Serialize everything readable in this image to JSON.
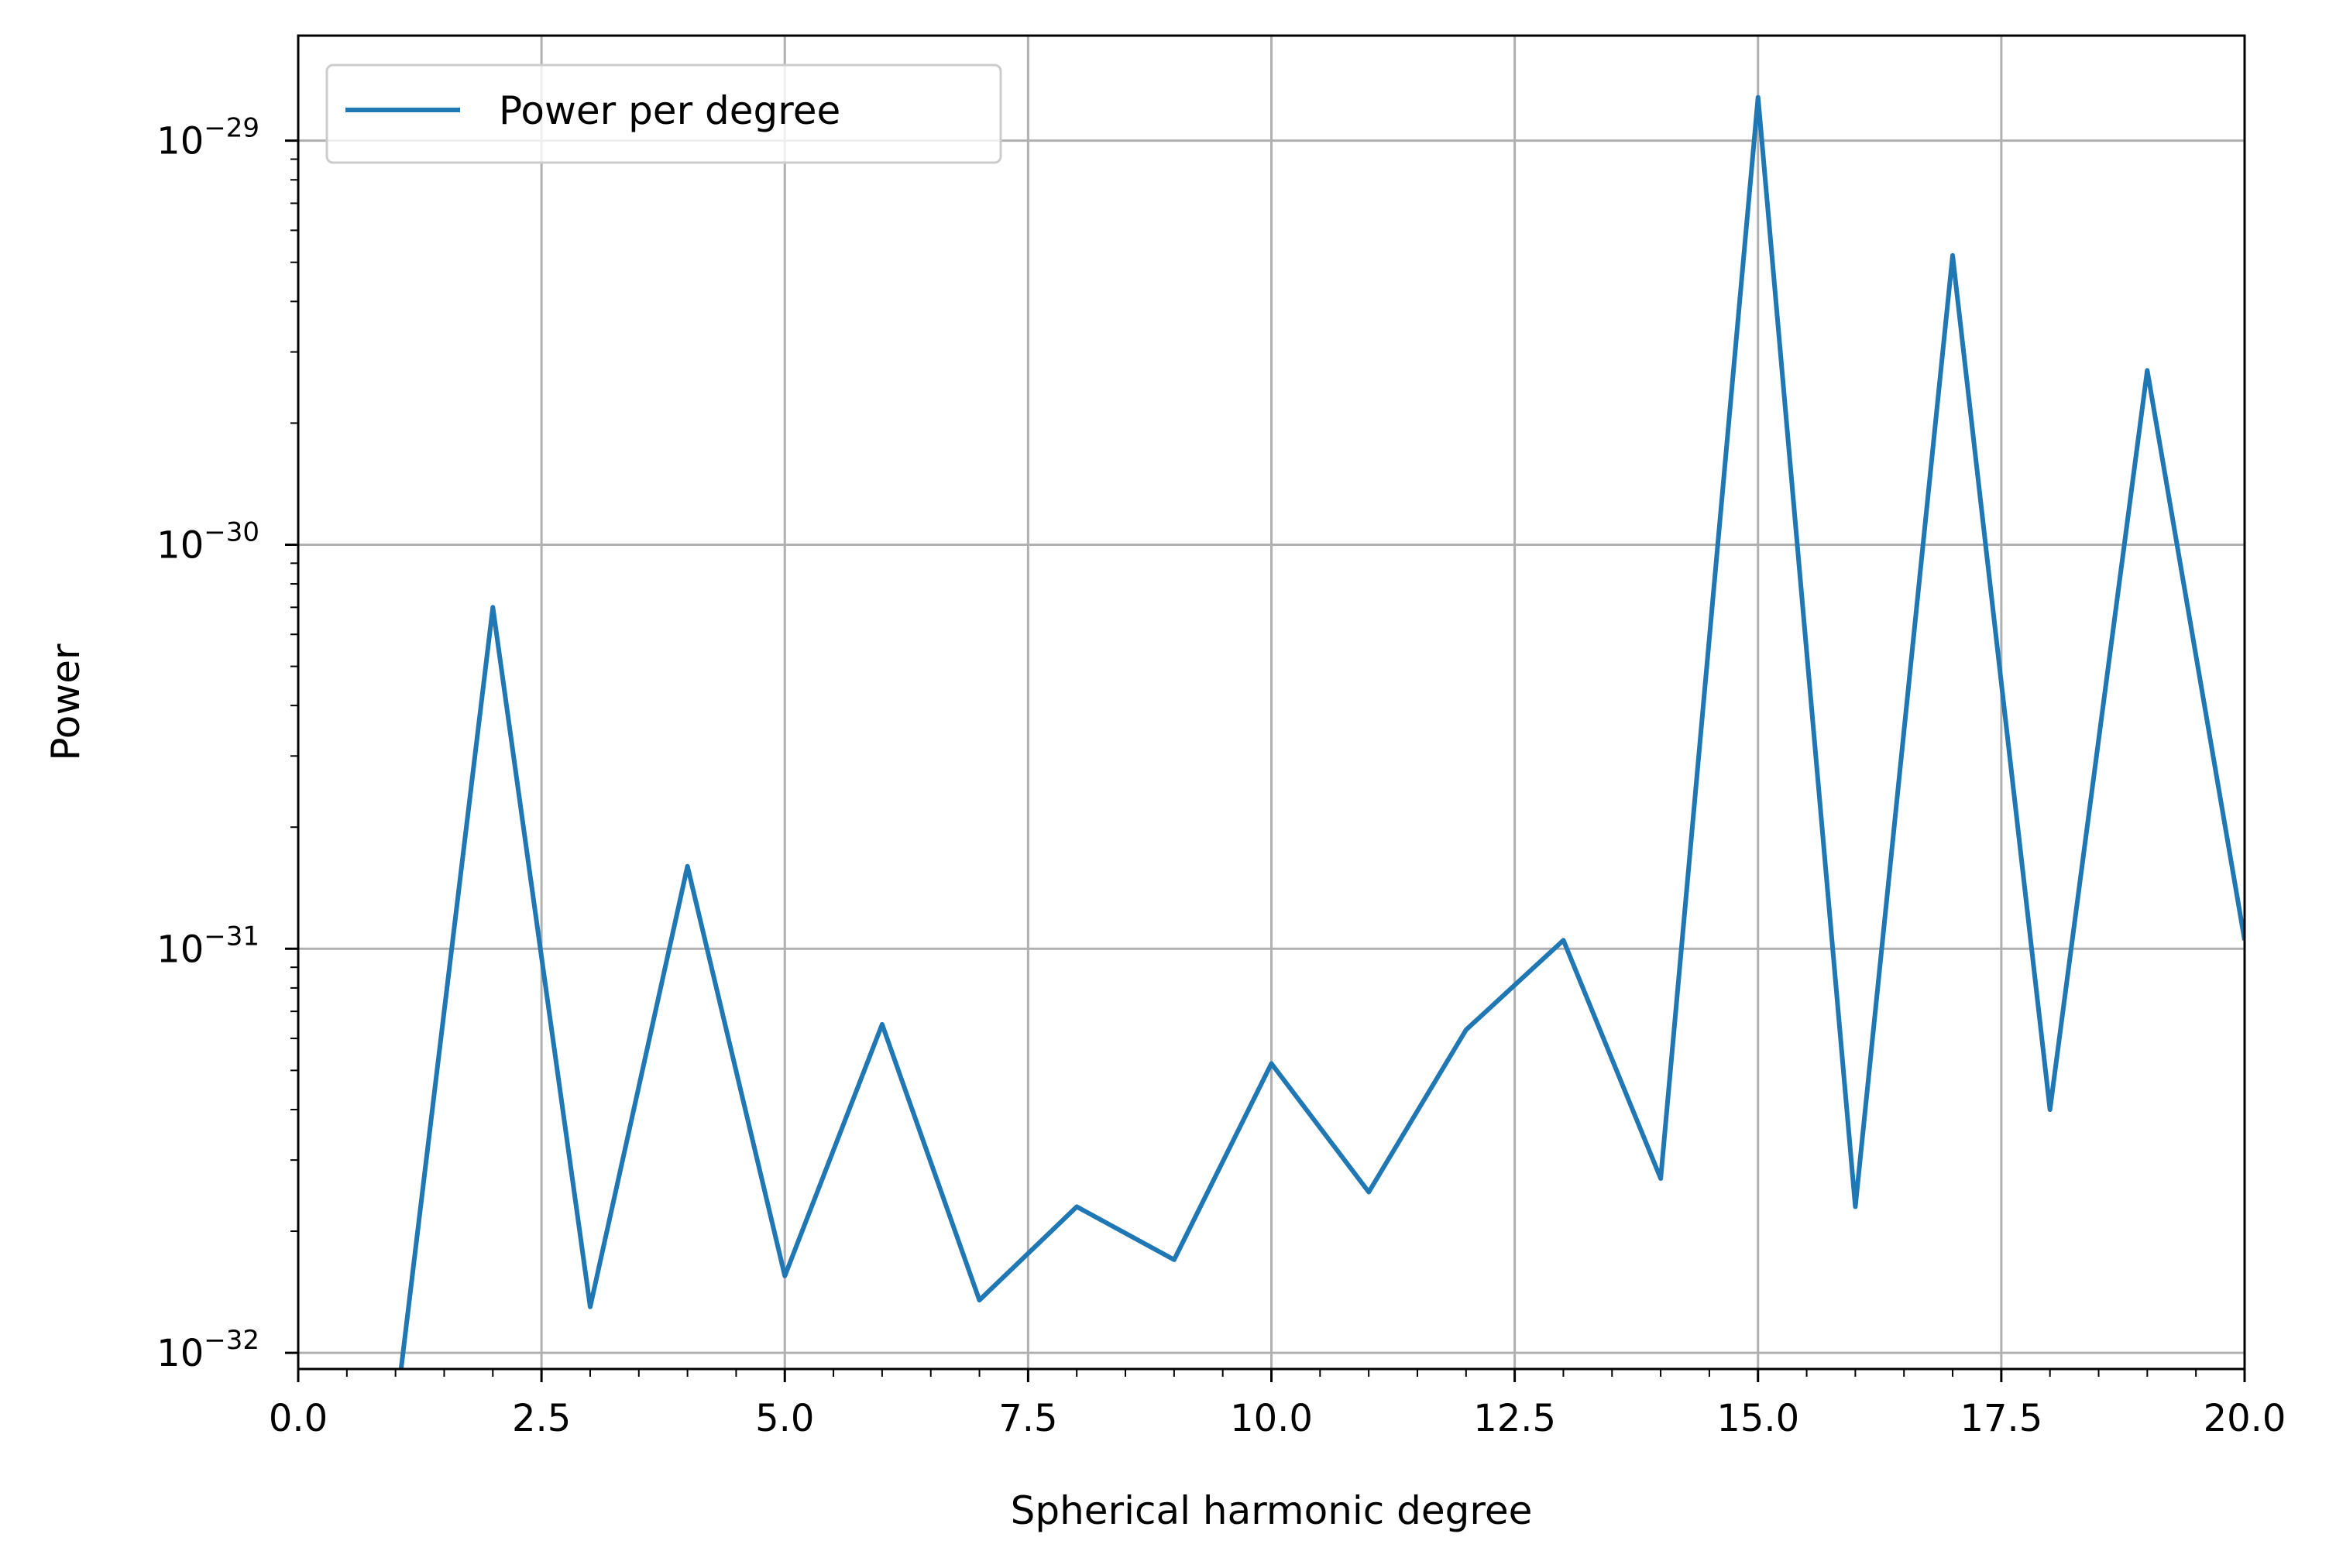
{
  "chart_data": {
    "type": "line",
    "xlabel": "Spherical harmonic degree",
    "ylabel": "Power",
    "xlim": [
      0,
      20
    ],
    "ylim_log10": [
      -32.04,
      -28.74
    ],
    "yscale": "log",
    "grid": true,
    "legend_position": "top-left",
    "x_ticks": [
      {
        "value": 0,
        "label": "0.0"
      },
      {
        "value": 2.5,
        "label": "2.5"
      },
      {
        "value": 5,
        "label": "5.0"
      },
      {
        "value": 7.5,
        "label": "7.5"
      },
      {
        "value": 10,
        "label": "10.0"
      },
      {
        "value": 12.5,
        "label": "12.5"
      },
      {
        "value": 15,
        "label": "15.0"
      },
      {
        "value": 17.5,
        "label": "17.5"
      },
      {
        "value": 20,
        "label": "20.0"
      }
    ],
    "y_ticks": [
      {
        "exponent": -32,
        "base": "10",
        "sup": "−32"
      },
      {
        "exponent": -31,
        "base": "10",
        "sup": "−31"
      },
      {
        "exponent": -30,
        "base": "10",
        "sup": "−30"
      },
      {
        "exponent": -29,
        "base": "10",
        "sup": "−29"
      }
    ],
    "series": [
      {
        "name": "Power per degree",
        "color": "#1f77b4",
        "x": [
          0,
          1,
          2,
          3,
          4,
          5,
          6,
          7,
          8,
          9,
          10,
          11,
          12,
          13,
          14,
          15,
          16,
          17,
          18,
          19,
          20
        ],
        "y": [
          0,
          0,
          7e-31,
          1.3e-32,
          1.6e-31,
          1.55e-32,
          6.5e-32,
          1.35e-32,
          2.3e-32,
          1.7e-32,
          5.2e-32,
          2.5e-32,
          6.3e-32,
          1.05e-31,
          2.7e-32,
          1.28e-29,
          2.3e-32,
          5.2e-30,
          4e-32,
          2.7e-30,
          1.05e-31
        ]
      }
    ]
  }
}
